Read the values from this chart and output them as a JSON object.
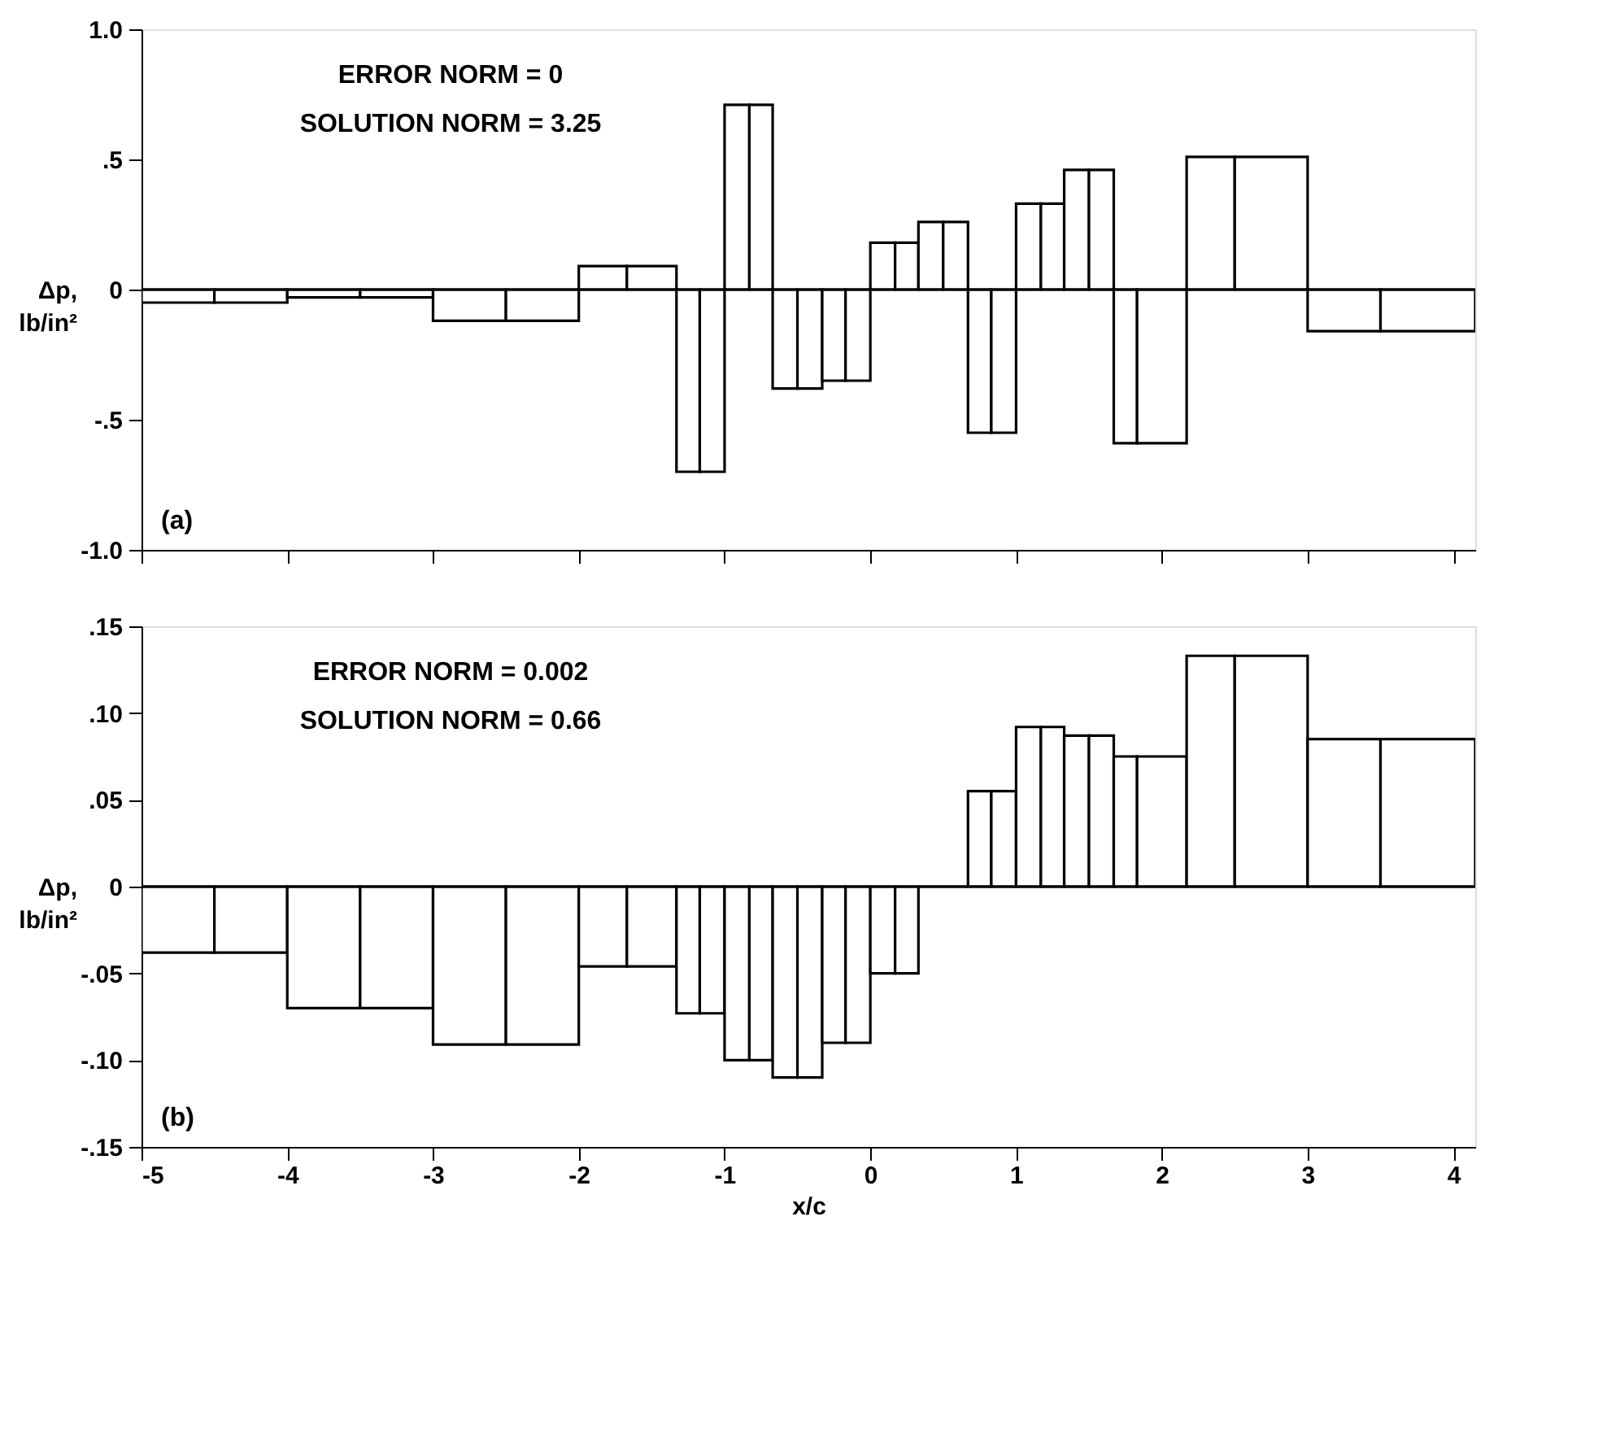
{
  "chart_data": [
    {
      "type": "histogram",
      "ylabel": "Δp,\nlb/in²",
      "bins": [
        -5,
        -4.5,
        -4,
        -3.5,
        -3,
        -2.5,
        -2,
        -1.67,
        -1.33,
        -1.17,
        -1,
        -0.83,
        -0.67,
        -0.5,
        -0.33,
        -0.17,
        0,
        0.17,
        0.33,
        0.5,
        0.67,
        0.83,
        1,
        1.17,
        1.33,
        1.5,
        1.67,
        1.83,
        2.17,
        2.5,
        3,
        3.5,
        4.15
      ],
      "values": [
        -0.05,
        -0.05,
        -0.03,
        -0.03,
        -0.12,
        -0.12,
        0.09,
        0.09,
        -0.7,
        -0.7,
        0.71,
        0.71,
        -0.38,
        -0.38,
        -0.35,
        -0.35,
        0.18,
        0.18,
        0.26,
        0.26,
        -0.55,
        -0.55,
        0.33,
        0.33,
        0.46,
        0.46,
        -0.59,
        -0.59,
        0.51,
        0.51,
        -0.16,
        -0.16
      ],
      "xlim": [
        -5,
        4.15
      ],
      "ylim": [
        -1,
        1
      ],
      "xticks": [
        -5,
        -4,
        -3,
        -2,
        -1,
        0,
        1,
        2,
        3,
        4
      ],
      "yticks": [
        {
          "value": 1,
          "label": "1.0"
        },
        {
          "value": 0.5,
          "label": ".5"
        },
        0,
        {
          "value": -0.5,
          "label": "-.5"
        },
        {
          "value": -1,
          "label": "-1.0"
        }
      ],
      "tick_labels": "y",
      "ref_lines": [
        {
          "axis": "y",
          "value": 0
        }
      ],
      "annotations": [
        "ERROR NORM = 0",
        "SOLUTION NORM = 3.25",
        "(a)"
      ]
    },
    {
      "type": "histogram",
      "xlabel": "x/c",
      "ylabel": "Δp,\nlb/in²",
      "bins": [
        -5,
        -4.5,
        -4,
        -3.5,
        -3,
        -2.5,
        -2,
        -1.67,
        -1.33,
        -1.17,
        -1,
        -0.83,
        -0.67,
        -0.5,
        -0.33,
        -0.17,
        0,
        0.17,
        0.33,
        0.5,
        0.67,
        0.83,
        1,
        1.17,
        1.33,
        1.5,
        1.67,
        1.83,
        2.17,
        2.5,
        3,
        3.5,
        4.15
      ],
      "values": [
        -0.038,
        -0.038,
        -0.07,
        -0.07,
        -0.091,
        -0.091,
        -0.046,
        -0.046,
        -0.073,
        -0.073,
        -0.1,
        -0.1,
        -0.11,
        -0.11,
        -0.09,
        -0.09,
        -0.05,
        -0.05,
        0,
        0,
        0.055,
        0.055,
        0.092,
        0.092,
        0.087,
        0.087,
        0.075,
        0.075,
        0.133,
        0.133,
        0.085,
        0.085
      ],
      "xlim": [
        -5,
        4.15
      ],
      "ylim": [
        -0.15,
        0.15
      ],
      "xticks": [
        -5,
        -4,
        -3,
        -2,
        -1,
        0,
        1,
        2,
        3,
        4
      ],
      "yticks": [
        {
          "value": 0.15,
          "label": ".15"
        },
        {
          "value": 0.1,
          "label": ".10"
        },
        {
          "value": 0.05,
          "label": ".05"
        },
        0,
        {
          "value": -0.05,
          "label": "-.05"
        },
        {
          "value": -0.1,
          "label": "-.10"
        },
        {
          "value": -0.15,
          "label": "-.15"
        }
      ],
      "ref_lines": [
        {
          "axis": "y",
          "value": 0
        }
      ],
      "annotations": [
        "ERROR NORM = 0.002",
        "SOLUTION NORM = 0.66",
        "(b)"
      ]
    }
  ]
}
